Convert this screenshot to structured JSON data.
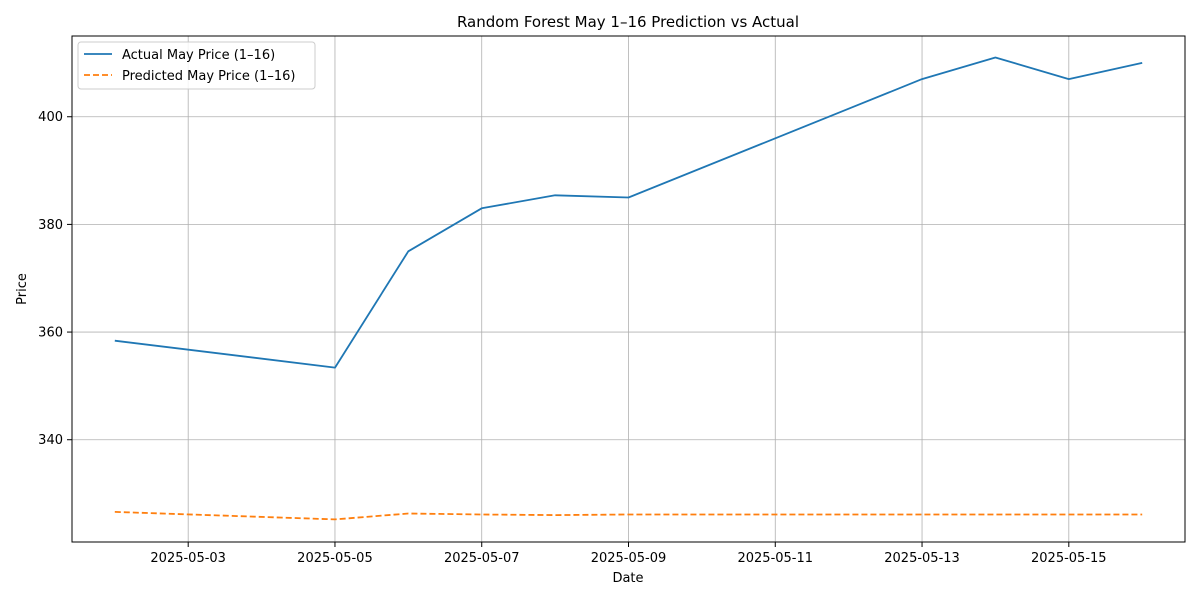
{
  "chart_data": {
    "type": "line",
    "title": "Random Forest May 1–16 Prediction vs Actual",
    "xlabel": "Date",
    "ylabel": "Price",
    "x_tick_labels": [
      "2025-05-03",
      "2025-05-05",
      "2025-05-07",
      "2025-05-09",
      "2025-05-11",
      "2025-05-13",
      "2025-05-15"
    ],
    "y_ticks": [
      340,
      360,
      380,
      400
    ],
    "xlim": [
      "2025-05-01T10:00",
      "2025-05-16T14:00"
    ],
    "ylim": [
      321,
      415
    ],
    "grid": true,
    "legend_position": "upper-left",
    "series": [
      {
        "name": "Actual May Price (1–16)",
        "color": "#1f77b4",
        "style": "solid",
        "points": [
          {
            "x": "2025-05-02",
            "y": 358.4
          },
          {
            "x": "2025-05-05",
            "y": 353.4
          },
          {
            "x": "2025-05-06",
            "y": 375.0
          },
          {
            "x": "2025-05-07",
            "y": 383.0
          },
          {
            "x": "2025-05-08",
            "y": 385.4
          },
          {
            "x": "2025-05-09",
            "y": 385.0
          },
          {
            "x": "2025-05-12",
            "y": 401.5
          },
          {
            "x": "2025-05-13",
            "y": 407.0
          },
          {
            "x": "2025-05-14",
            "y": 411.0
          },
          {
            "x": "2025-05-15",
            "y": 407.0
          },
          {
            "x": "2025-05-16",
            "y": 410.0
          }
        ]
      },
      {
        "name": "Predicted May Price (1–16)",
        "color": "#ff7f0e",
        "style": "dashed",
        "points": [
          {
            "x": "2025-05-02",
            "y": 326.6
          },
          {
            "x": "2025-05-05",
            "y": 325.2
          },
          {
            "x": "2025-05-06",
            "y": 326.3
          },
          {
            "x": "2025-05-07",
            "y": 326.1
          },
          {
            "x": "2025-05-08",
            "y": 326.0
          },
          {
            "x": "2025-05-09",
            "y": 326.1
          },
          {
            "x": "2025-05-12",
            "y": 326.1
          },
          {
            "x": "2025-05-13",
            "y": 326.1
          },
          {
            "x": "2025-05-14",
            "y": 326.1
          },
          {
            "x": "2025-05-15",
            "y": 326.1
          },
          {
            "x": "2025-05-16",
            "y": 326.1
          }
        ]
      }
    ]
  }
}
